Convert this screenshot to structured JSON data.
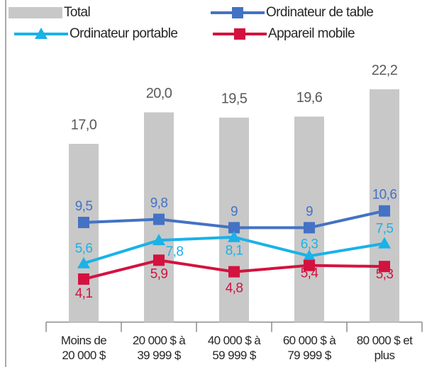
{
  "chart_data": {
    "type": "combo",
    "categories": [
      [
        "Moins de",
        "20 000 $"
      ],
      [
        "20 000 $ à",
        "39 999 $"
      ],
      [
        "40 000 $ à",
        "59 999 $"
      ],
      [
        "60 000 $ à",
        "79 999 $"
      ],
      [
        "80 000 $ et",
        "plus"
      ]
    ],
    "ylim": [
      0,
      25
    ],
    "series": [
      {
        "name": "Total",
        "type": "bar",
        "color": "#c8c8c8",
        "values": [
          17.0,
          20.0,
          19.5,
          19.6,
          22.2
        ],
        "value_labels": [
          "17,0",
          "20,0",
          "19,5",
          "19,6",
          "22,2"
        ],
        "label_color": "#595959"
      },
      {
        "name": "Ordinateur de table",
        "type": "line",
        "marker": "square",
        "color": "#4472c4",
        "values": [
          9.5,
          9.8,
          9,
          9,
          10.6
        ],
        "value_labels": [
          "9,5",
          "9,8",
          "9",
          "9",
          "10,6"
        ]
      },
      {
        "name": "Ordinateur portable",
        "type": "line",
        "marker": "triangle",
        "color": "#1ab2e8",
        "values": [
          5.6,
          7.8,
          8.1,
          6.3,
          7.5
        ],
        "value_labels": [
          "5,6",
          "7,8",
          "8,1",
          "6,3",
          "7,5"
        ]
      },
      {
        "name": "Appareil mobile",
        "type": "line",
        "marker": "square",
        "color": "#d4123f",
        "values": [
          4.1,
          5.9,
          4.8,
          5.4,
          5.3
        ],
        "value_labels": [
          "4,1",
          "5,9",
          "4,8",
          "5,4",
          "5,3"
        ]
      }
    ]
  }
}
